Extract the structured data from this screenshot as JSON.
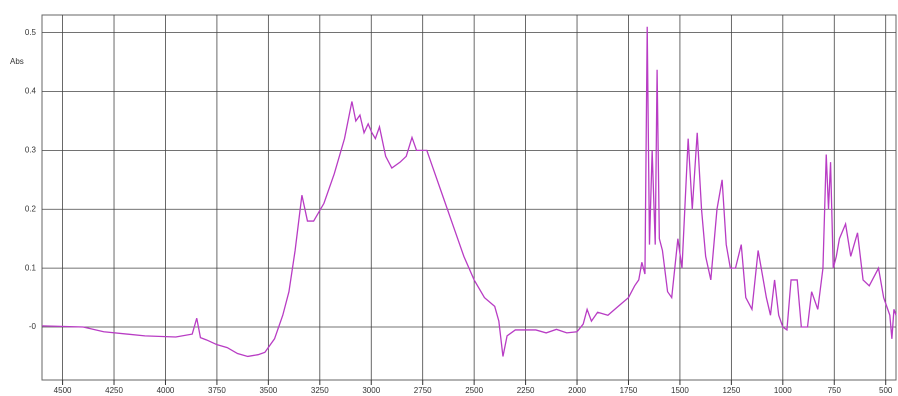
{
  "chart_data": {
    "type": "line",
    "y_label": "Abs",
    "color": "#b83cc4",
    "grid": true,
    "xlim": [
      4600,
      450
    ],
    "ylim": [
      -0.09,
      0.53
    ],
    "xticks": [
      4500,
      4250,
      4000,
      3750,
      3500,
      3250,
      3000,
      2750,
      2500,
      2250,
      2000,
      1750,
      1500,
      1250,
      1000,
      750,
      500
    ],
    "yticks": [
      {
        "value": 0,
        "label": "-0"
      },
      0.1,
      0.2,
      0.3,
      0.4,
      0.5
    ],
    "x": [
      4600,
      4400,
      4300,
      4100,
      3950,
      3870,
      3848,
      3830,
      3800,
      3750,
      3700,
      3650,
      3600,
      3550,
      3517,
      3470,
      3430,
      3400,
      3370,
      3337,
      3310,
      3280,
      3230,
      3180,
      3130,
      3094,
      3075,
      3055,
      3035,
      3015,
      2997,
      2980,
      2960,
      2930,
      2900,
      2860,
      2830,
      2802,
      2780,
      2760,
      2730,
      2700,
      2650,
      2600,
      2550,
      2500,
      2450,
      2400,
      2380,
      2360,
      2340,
      2300,
      2200,
      2150,
      2100,
      2050,
      2000,
      1970,
      1951,
      1930,
      1900,
      1850,
      1800,
      1750,
      1720,
      1700,
      1685,
      1670,
      1659,
      1648,
      1635,
      1620,
      1611,
      1600,
      1585,
      1560,
      1540,
      1510,
      1490,
      1460,
      1440,
      1416,
      1395,
      1375,
      1350,
      1320,
      1295,
      1275,
      1255,
      1230,
      1202,
      1180,
      1150,
      1120,
      1100,
      1080,
      1060,
      1040,
      1020,
      1000,
      980,
      960,
      930,
      910,
      880,
      860,
      830,
      805,
      789,
      778,
      768,
      755,
      740,
      725,
      695,
      670,
      637,
      610,
      580,
      535,
      510,
      480,
      470,
      460,
      450
    ],
    "values": [
      0.002,
      0.0,
      -0.008,
      -0.015,
      -0.017,
      -0.012,
      0.015,
      -0.018,
      -0.022,
      -0.03,
      -0.035,
      -0.045,
      -0.05,
      -0.047,
      -0.043,
      -0.02,
      0.02,
      0.06,
      0.13,
      0.224,
      0.18,
      0.18,
      0.21,
      0.26,
      0.32,
      0.383,
      0.35,
      0.36,
      0.33,
      0.345,
      0.33,
      0.32,
      0.34,
      0.29,
      0.27,
      0.28,
      0.29,
      0.322,
      0.3,
      0.3,
      0.3,
      0.27,
      0.22,
      0.17,
      0.12,
      0.08,
      0.05,
      0.035,
      0.01,
      -0.05,
      -0.015,
      -0.005,
      -0.005,
      -0.01,
      -0.004,
      -0.01,
      -0.008,
      0.005,
      0.03,
      0.01,
      0.025,
      0.02,
      0.035,
      0.05,
      0.07,
      0.08,
      0.11,
      0.09,
      0.51,
      0.14,
      0.3,
      0.14,
      0.437,
      0.15,
      0.13,
      0.06,
      0.05,
      0.15,
      0.1,
      0.32,
      0.2,
      0.33,
      0.2,
      0.12,
      0.08,
      0.2,
      0.25,
      0.14,
      0.1,
      0.1,
      0.14,
      0.05,
      0.03,
      0.13,
      0.09,
      0.05,
      0.02,
      0.08,
      0.02,
      0.0,
      -0.005,
      0.08,
      0.08,
      0.0,
      0.0,
      0.06,
      0.03,
      0.1,
      0.293,
      0.2,
      0.28,
      0.1,
      0.12,
      0.15,
      0.175,
      0.12,
      0.16,
      0.08,
      0.07,
      0.1,
      0.05,
      0.02,
      -0.02,
      0.03,
      0.02
    ]
  }
}
